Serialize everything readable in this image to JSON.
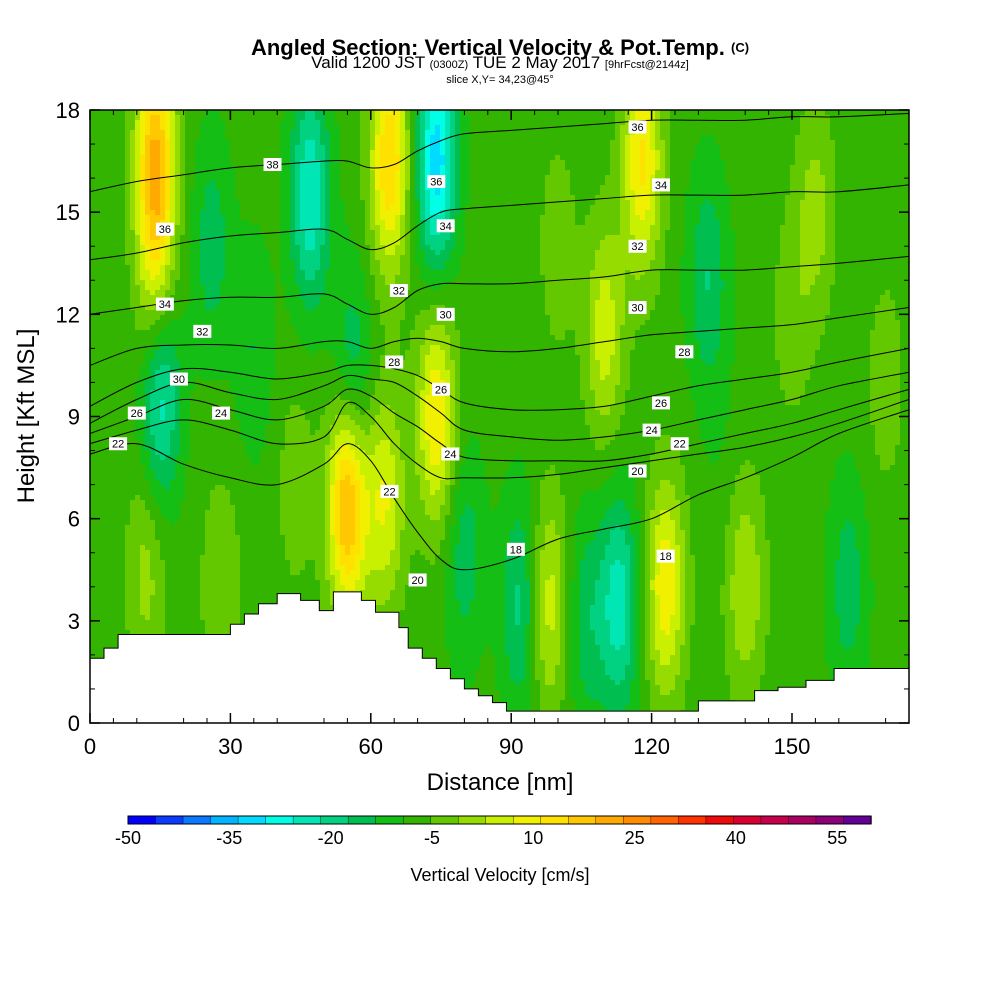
{
  "header": {
    "title": "Angled Section: Vertical Velocity & Pot.Temp.",
    "title_suffix": "(C)",
    "valid_prefix": "Valid 1200 JST",
    "valid_z": "(0300Z)",
    "valid_date": "TUE 2 May 2017",
    "forecast": "[9hrFcst@2144z]",
    "slice": "slice X,Y= 34,23@45°"
  },
  "chart_data": {
    "type": "heatmap",
    "xlabel": "Distance [nm]",
    "ylabel": "Height [Kft MSL]",
    "xlim": [
      0,
      175
    ],
    "ylim": [
      0,
      18
    ],
    "x_ticks": [
      "0",
      "30",
      "60",
      "90",
      "120",
      "150"
    ],
    "y_ticks": [
      "0",
      "3",
      "6",
      "9",
      "12",
      "15",
      "18"
    ],
    "x_tick_values": [
      0,
      30,
      60,
      90,
      120,
      150
    ],
    "y_tick_values": [
      0,
      3,
      6,
      9,
      12,
      15,
      18
    ],
    "colorbar": {
      "label": "Vertical Velocity [cm/s]",
      "tick_labels": [
        "-50",
        "-35",
        "-20",
        "-5",
        "10",
        "25",
        "40",
        "55"
      ],
      "tick_values": [
        -50,
        -35,
        -20,
        -5,
        10,
        25,
        40,
        55
      ],
      "min": -50,
      "max": 60,
      "step": 5,
      "colors": [
        "#0000ff",
        "#0a3cff",
        "#0a78ff",
        "#00b4ff",
        "#00dcff",
        "#00ffe6",
        "#00e6b4",
        "#00d282",
        "#00be50",
        "#14be14",
        "#32b400",
        "#64c800",
        "#96dc00",
        "#c8f000",
        "#f0f000",
        "#ffe100",
        "#ffc800",
        "#ffaa00",
        "#ff8c00",
        "#ff6400",
        "#ff3200",
        "#f00a0a",
        "#dc0032",
        "#c8004b",
        "#aa0064",
        "#8c0078",
        "#640096"
      ]
    },
    "velocity_field_cm_s": {
      "background": 2,
      "features": [
        {
          "x": 14,
          "y": 16.5,
          "value": 35
        },
        {
          "x": 14,
          "y": 12.5,
          "value": 18
        },
        {
          "x": 15,
          "y": 9.8,
          "value": -22
        },
        {
          "x": 4,
          "y": 9.5,
          "value": 0
        },
        {
          "x": 12,
          "y": 4.5,
          "value": 12
        },
        {
          "x": 28,
          "y": 4,
          "value": 10
        },
        {
          "x": 26,
          "y": 14,
          "value": -8
        },
        {
          "x": 35,
          "y": 11,
          "value": -5
        },
        {
          "x": 44,
          "y": 7,
          "value": 8
        },
        {
          "x": 47,
          "y": 15.5,
          "value": -20
        },
        {
          "x": 56,
          "y": 10,
          "value": -12
        },
        {
          "x": 55,
          "y": 6.5,
          "value": 38
        },
        {
          "x": 63,
          "y": 6.5,
          "value": 20
        },
        {
          "x": 64,
          "y": 16.5,
          "value": 30
        },
        {
          "x": 74,
          "y": 16.5,
          "value": -28
        },
        {
          "x": 74,
          "y": 9,
          "value": 25
        },
        {
          "x": 80,
          "y": 5,
          "value": -8
        },
        {
          "x": 92,
          "y": 3.5,
          "value": -12
        },
        {
          "x": 98,
          "y": 3.5,
          "value": 18
        },
        {
          "x": 106,
          "y": 3,
          "value": -8
        },
        {
          "x": 113,
          "y": 3.5,
          "value": -18
        },
        {
          "x": 110,
          "y": 11.5,
          "value": 18
        },
        {
          "x": 118,
          "y": 16.5,
          "value": 26
        },
        {
          "x": 100,
          "y": 14,
          "value": 8
        },
        {
          "x": 123,
          "y": 4,
          "value": 24
        },
        {
          "x": 132,
          "y": 13,
          "value": -10
        },
        {
          "x": 140,
          "y": 4,
          "value": 15
        },
        {
          "x": 150,
          "y": 12,
          "value": 8
        },
        {
          "x": 155,
          "y": 15,
          "value": 12
        },
        {
          "x": 162,
          "y": 4,
          "value": -8
        },
        {
          "x": 170,
          "y": 10,
          "value": 8
        },
        {
          "x": 135,
          "y": 8,
          "value": 0
        }
      ]
    },
    "terrain": {
      "x": [
        0,
        3,
        3,
        6,
        6,
        30,
        30,
        33,
        33,
        36,
        36,
        40,
        40,
        45,
        45,
        49,
        49,
        52,
        52,
        58,
        58,
        61,
        61,
        66,
        66,
        68,
        68,
        71,
        71,
        74,
        74,
        77,
        77,
        80,
        80,
        83,
        83,
        86,
        86,
        89,
        89,
        92,
        92,
        130,
        130,
        137,
        137,
        142,
        142,
        147,
        147,
        153,
        153,
        159,
        159,
        166,
        166,
        175
      ],
      "height_kft": [
        1.9,
        1.9,
        2.2,
        2.2,
        2.6,
        2.6,
        2.9,
        2.9,
        3.2,
        3.2,
        3.5,
        3.5,
        3.8,
        3.8,
        3.6,
        3.6,
        3.3,
        3.3,
        3.85,
        3.85,
        3.6,
        3.6,
        3.25,
        3.25,
        2.8,
        2.8,
        2.2,
        2.2,
        1.9,
        1.9,
        1.6,
        1.6,
        1.3,
        1.3,
        1.0,
        1.0,
        0.8,
        0.8,
        0.6,
        0.6,
        0.35,
        0.35,
        0.35,
        0.35,
        0.65,
        0.65,
        0.65,
        0.65,
        0.95,
        0.95,
        1.05,
        1.05,
        1.25,
        1.25,
        1.6,
        1.6,
        1.6,
        1.6
      ]
    },
    "theta_contours": {
      "x": [
        0,
        10,
        20,
        30,
        40,
        50,
        55,
        60,
        65,
        70,
        75,
        80,
        90,
        100,
        110,
        120,
        130,
        140,
        150,
        160,
        175
      ],
      "levels": [
        {
          "value": 22,
          "y": [
            7.9,
            8.2,
            7.6,
            7.2,
            7.0,
            7.6,
            8.2,
            7.7,
            6.6,
            5.6,
            4.8,
            4.5,
            4.8,
            5.4,
            5.7,
            6.0,
            6.7,
            7.2,
            7.8,
            8.5,
            9.2
          ]
        },
        {
          "value": 24,
          "y": [
            8.2,
            8.6,
            8.9,
            8.6,
            8.2,
            8.4,
            9.4,
            9.0,
            8.2,
            7.6,
            7.2,
            7.2,
            7.2,
            7.3,
            7.5,
            7.7,
            7.9,
            8.1,
            8.4,
            8.8,
            9.5
          ]
        },
        {
          "value": 26,
          "y": [
            8.5,
            9.0,
            9.5,
            9.2,
            8.9,
            9.3,
            9.8,
            9.6,
            9.1,
            8.7,
            8.2,
            7.8,
            7.7,
            7.7,
            7.7,
            7.9,
            8.2,
            8.5,
            8.8,
            9.2,
            9.8
          ]
        },
        {
          "value": 28,
          "y": [
            8.8,
            9.5,
            10.0,
            9.7,
            9.5,
            9.9,
            10.2,
            10.1,
            10.0,
            9.6,
            9.1,
            8.6,
            8.4,
            8.3,
            8.4,
            8.6,
            8.9,
            9.2,
            9.5,
            9.9,
            10.3
          ]
        },
        {
          "value": 30,
          "y": [
            9.3,
            10.0,
            10.4,
            10.3,
            10.1,
            10.3,
            10.5,
            10.5,
            10.4,
            10.2,
            9.8,
            9.4,
            9.2,
            9.2,
            9.3,
            9.6,
            9.9,
            10.1,
            10.3,
            10.6,
            11.0
          ]
        },
        {
          "value": 32,
          "y": [
            10.5,
            11.0,
            11.1,
            11.1,
            11.0,
            11.2,
            11.2,
            11.0,
            11.2,
            11.3,
            11.2,
            11.0,
            10.9,
            11.0,
            11.2,
            11.4,
            11.5,
            11.6,
            11.7,
            11.9,
            12.2
          ]
        },
        {
          "value": 34,
          "y": [
            12.0,
            12.2,
            12.4,
            12.5,
            12.5,
            12.6,
            12.3,
            12.0,
            12.2,
            12.7,
            12.9,
            12.9,
            12.9,
            13.0,
            13.1,
            13.3,
            13.3,
            13.3,
            13.4,
            13.5,
            13.7
          ]
        },
        {
          "value": 36,
          "y": [
            13.6,
            13.8,
            14.1,
            14.3,
            14.4,
            14.5,
            14.2,
            13.9,
            14.1,
            14.6,
            15.0,
            15.1,
            15.2,
            15.3,
            15.4,
            15.5,
            15.5,
            15.5,
            15.6,
            15.6,
            15.8
          ]
        },
        {
          "value": 38,
          "y": [
            15.6,
            15.9,
            16.1,
            16.3,
            16.4,
            16.5,
            16.5,
            16.3,
            16.4,
            16.8,
            17.1,
            17.3,
            17.4,
            17.5,
            17.6,
            17.7,
            17.7,
            17.7,
            17.8,
            17.8,
            17.9
          ]
        }
      ],
      "labels": [
        {
          "text": "38",
          "x": 39,
          "y": 16.4
        },
        {
          "text": "36",
          "x": 16,
          "y": 14.5
        },
        {
          "text": "36",
          "x": 74,
          "y": 15.9
        },
        {
          "text": "36",
          "x": 117,
          "y": 17.5
        },
        {
          "text": "34",
          "x": 16,
          "y": 12.3
        },
        {
          "text": "34",
          "x": 76,
          "y": 14.6
        },
        {
          "text": "34",
          "x": 122,
          "y": 15.8
        },
        {
          "text": "32",
          "x": 24,
          "y": 11.5
        },
        {
          "text": "32",
          "x": 66,
          "y": 12.7
        },
        {
          "text": "32",
          "x": 117,
          "y": 14.0
        },
        {
          "text": "30",
          "x": 19,
          "y": 10.1
        },
        {
          "text": "30",
          "x": 76,
          "y": 12.0
        },
        {
          "text": "30",
          "x": 117,
          "y": 12.2
        },
        {
          "text": "28",
          "x": 65,
          "y": 10.6
        },
        {
          "text": "28",
          "x": 127,
          "y": 10.9
        },
        {
          "text": "26",
          "x": 10,
          "y": 9.1
        },
        {
          "text": "26",
          "x": 75,
          "y": 9.8
        },
        {
          "text": "26",
          "x": 122,
          "y": 9.4
        },
        {
          "text": "24",
          "x": 28,
          "y": 9.1
        },
        {
          "text": "24",
          "x": 77,
          "y": 7.9
        },
        {
          "text": "24",
          "x": 120,
          "y": 8.6
        },
        {
          "text": "22",
          "x": 6,
          "y": 8.2
        },
        {
          "text": "22",
          "x": 64,
          "y": 6.8
        },
        {
          "text": "22",
          "x": 126,
          "y": 8.2
        },
        {
          "text": "20",
          "x": 70,
          "y": 4.2
        },
        {
          "text": "20",
          "x": 117,
          "y": 7.4
        },
        {
          "text": "18",
          "x": 91,
          "y": 5.1
        },
        {
          "text": "18",
          "x": 123,
          "y": 4.9
        }
      ]
    }
  }
}
